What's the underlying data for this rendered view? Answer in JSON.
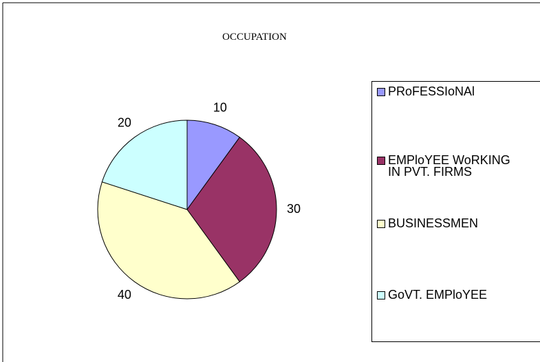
{
  "chart_data": {
    "type": "pie",
    "title": "OCCUPATION",
    "categories": [
      "PRoFESSIoNAl",
      "EMPloYEE WoRKING IN PVT. FIRMS",
      "BUSINESSMEN",
      "GoVT. EMPloYEE"
    ],
    "values": [
      10,
      30,
      40,
      20
    ],
    "colors": [
      "#9999ff",
      "#993366",
      "#ffffcc",
      "#ccffff"
    ],
    "legend": "right"
  }
}
